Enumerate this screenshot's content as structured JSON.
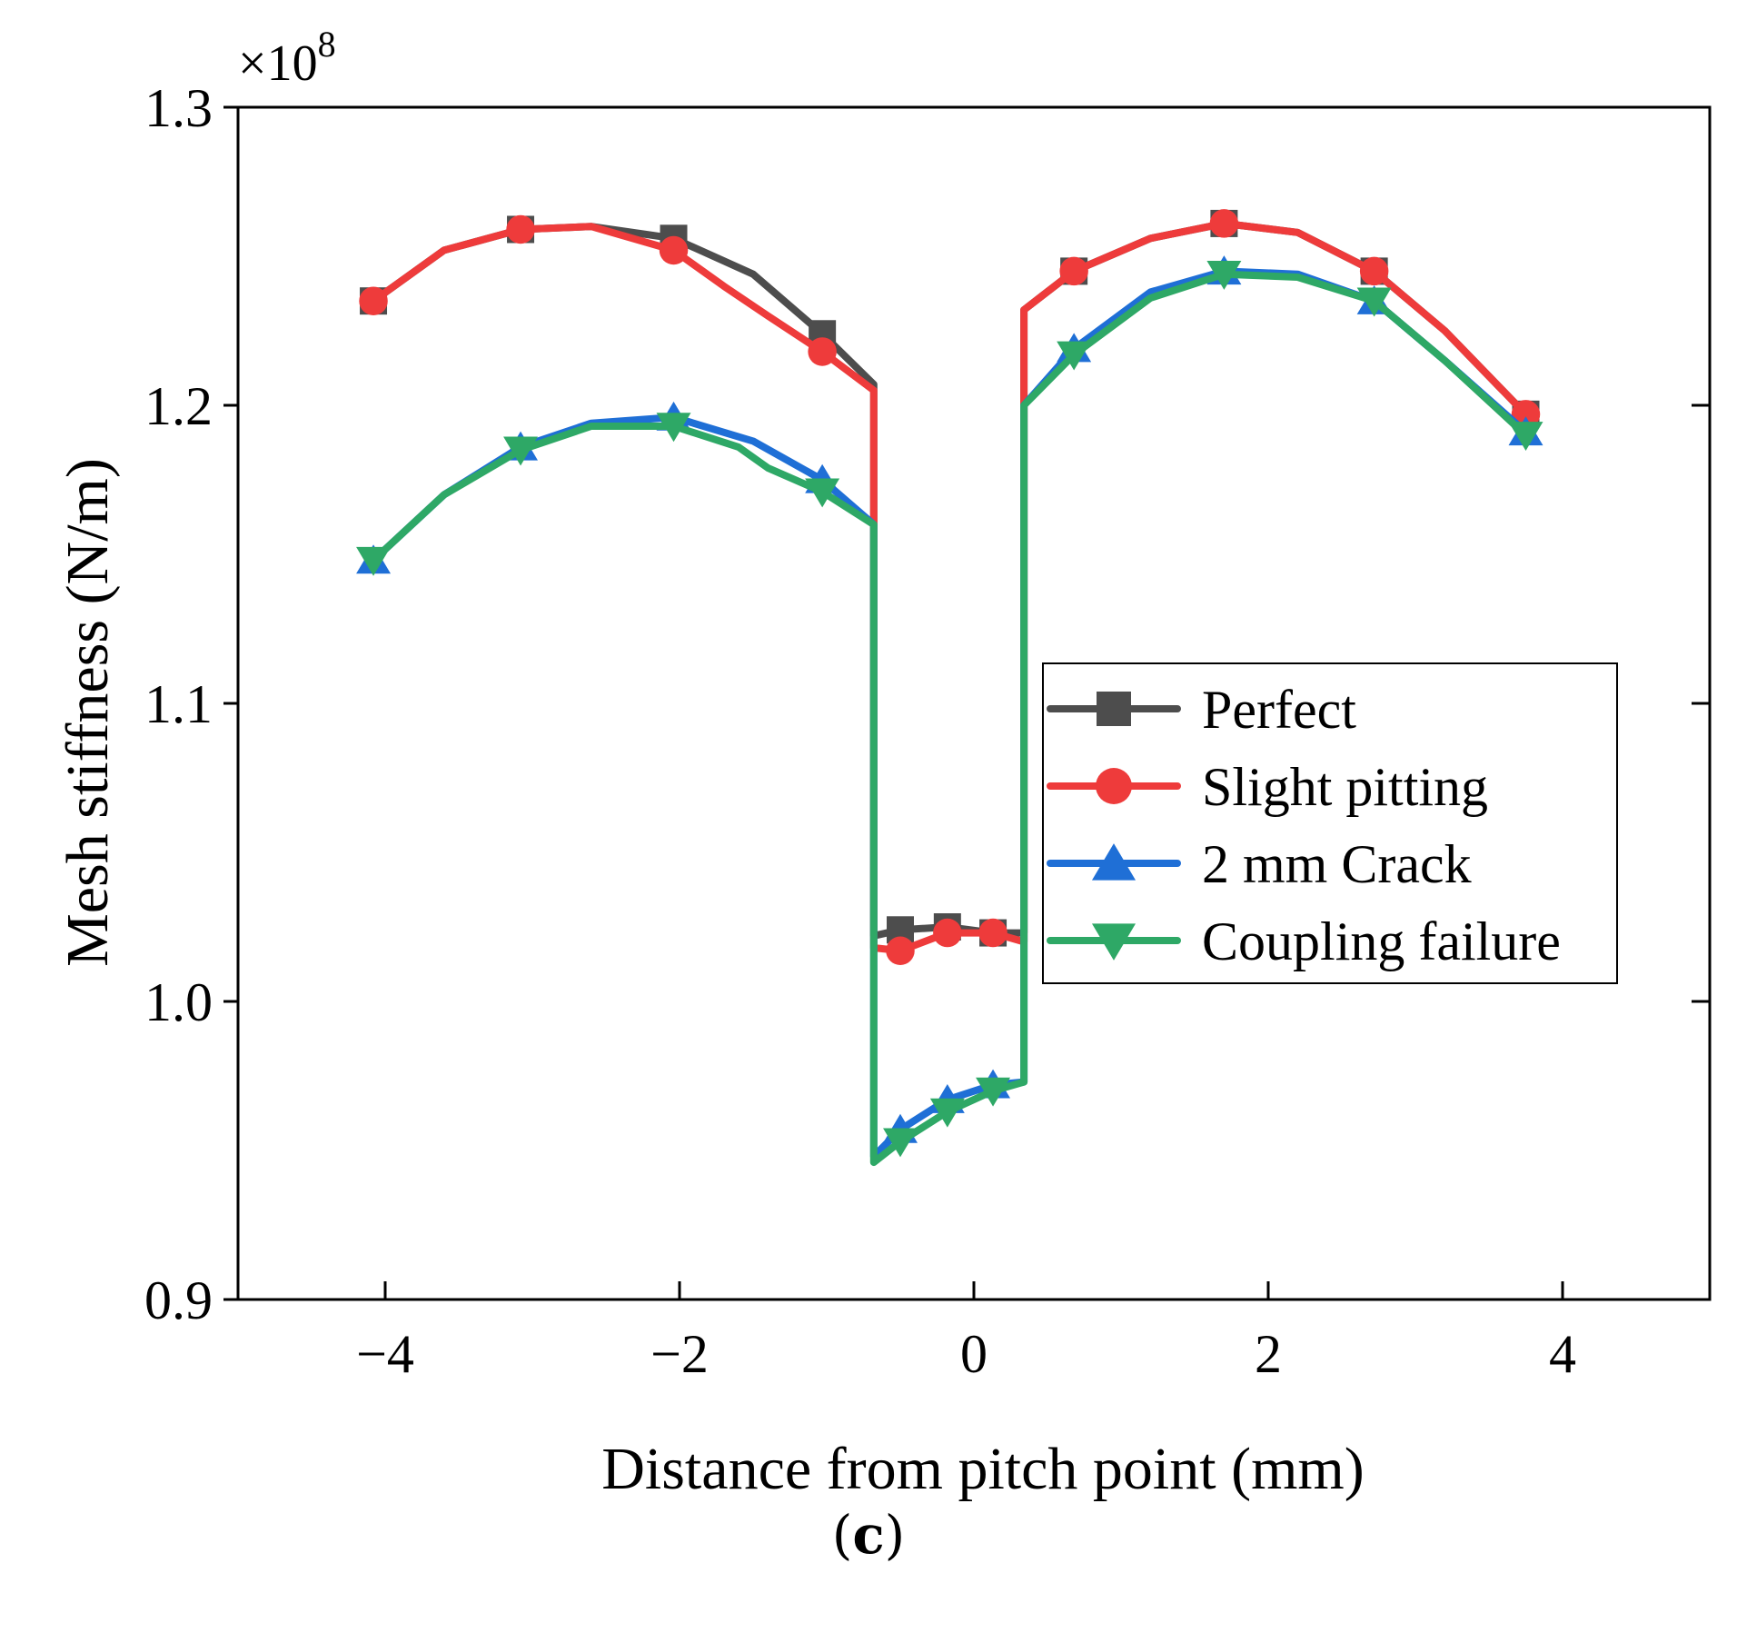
{
  "chart_data": {
    "type": "line",
    "title": "",
    "xlabel": "Distance from pitch point (mm)",
    "ylabel": "Mesh stiffness (N/m)",
    "y_multiplier": "×10",
    "y_multiplier_exp": "8",
    "xlim": [
      -5,
      5
    ],
    "ylim": [
      0.9,
      1.3
    ],
    "xticks": [
      -4,
      -2,
      0,
      2,
      4
    ],
    "xtick_labels": [
      "−4",
      "−2",
      "0",
      "2",
      "4"
    ],
    "yticks": [
      0.9,
      1.0,
      1.1,
      1.2,
      1.3
    ],
    "ytick_labels": [
      "0.9",
      "1.0",
      "1.1",
      "1.2",
      "1.3"
    ],
    "legend_position": "center-right",
    "series": [
      {
        "name": "Perfect",
        "color": "#4d4d4d",
        "marker": "square",
        "line": [
          [
            -4.08,
            1.235
          ],
          [
            -3.6,
            1.252
          ],
          [
            -3.08,
            1.259
          ],
          [
            -2.6,
            1.26
          ],
          [
            -2.04,
            1.256
          ],
          [
            -1.5,
            1.244
          ],
          [
            -1.03,
            1.224
          ],
          [
            -0.68,
            1.207
          ],
          [
            -0.68,
            1.022
          ],
          [
            -0.5,
            1.024
          ],
          [
            -0.18,
            1.025
          ],
          [
            0.13,
            1.023
          ],
          [
            0.34,
            1.023
          ],
          [
            0.34,
            1.232
          ],
          [
            0.68,
            1.245
          ],
          [
            1.2,
            1.256
          ],
          [
            1.7,
            1.261
          ],
          [
            2.2,
            1.258
          ],
          [
            2.72,
            1.245
          ],
          [
            3.2,
            1.225
          ],
          [
            3.75,
            1.197
          ]
        ],
        "markers_x": [
          -4.08,
          -3.08,
          -2.04,
          -1.03,
          -0.5,
          -0.18,
          0.13,
          0.68,
          1.7,
          2.72,
          3.75
        ],
        "markers_y": [
          1.235,
          1.259,
          1.256,
          1.224,
          1.024,
          1.025,
          1.023,
          1.245,
          1.261,
          1.245,
          1.197
        ]
      },
      {
        "name": "Slight pitting",
        "color": "#ee3b3b",
        "marker": "circle",
        "line": [
          [
            -4.08,
            1.235
          ],
          [
            -3.6,
            1.252
          ],
          [
            -3.08,
            1.259
          ],
          [
            -2.6,
            1.26
          ],
          [
            -2.04,
            1.252
          ],
          [
            -1.7,
            1.24
          ],
          [
            -1.4,
            1.23
          ],
          [
            -1.03,
            1.218
          ],
          [
            -0.68,
            1.205
          ],
          [
            -0.68,
            1.018
          ],
          [
            -0.5,
            1.017
          ],
          [
            -0.18,
            1.023
          ],
          [
            0.13,
            1.023
          ],
          [
            0.34,
            1.02
          ],
          [
            0.34,
            1.232
          ],
          [
            0.68,
            1.245
          ],
          [
            1.2,
            1.256
          ],
          [
            1.7,
            1.261
          ],
          [
            2.2,
            1.258
          ],
          [
            2.72,
            1.245
          ],
          [
            3.2,
            1.225
          ],
          [
            3.75,
            1.197
          ]
        ],
        "markers_x": [
          -4.08,
          -3.08,
          -2.04,
          -1.03,
          -0.5,
          -0.18,
          0.13,
          0.68,
          1.7,
          2.72,
          3.75
        ],
        "markers_y": [
          1.235,
          1.259,
          1.252,
          1.218,
          1.017,
          1.023,
          1.023,
          1.245,
          1.261,
          1.245,
          1.197
        ]
      },
      {
        "name": "2 mm Crack",
        "color": "#1f6fd6",
        "marker": "triangle-up",
        "line": [
          [
            -4.08,
            1.148
          ],
          [
            -3.6,
            1.17
          ],
          [
            -3.08,
            1.186
          ],
          [
            -2.6,
            1.194
          ],
          [
            -2.04,
            1.196
          ],
          [
            -1.5,
            1.188
          ],
          [
            -1.03,
            1.175
          ],
          [
            -0.68,
            1.16
          ],
          [
            -0.68,
            0.948
          ],
          [
            -0.5,
            0.957
          ],
          [
            -0.18,
            0.967
          ],
          [
            0.13,
            0.972
          ],
          [
            0.34,
            0.973
          ],
          [
            0.34,
            1.2
          ],
          [
            0.68,
            1.219
          ],
          [
            1.2,
            1.238
          ],
          [
            1.7,
            1.245
          ],
          [
            2.2,
            1.244
          ],
          [
            2.72,
            1.235
          ],
          [
            3.2,
            1.215
          ],
          [
            3.75,
            1.191
          ]
        ],
        "markers_x": [
          -4.08,
          -3.08,
          -2.04,
          -1.03,
          -0.5,
          -0.18,
          0.13,
          0.68,
          1.7,
          2.72,
          3.75
        ],
        "markers_y": [
          1.148,
          1.186,
          1.196,
          1.175,
          0.957,
          0.967,
          0.972,
          1.219,
          1.245,
          1.235,
          1.191
        ]
      },
      {
        "name": "Coupling failure",
        "color": "#2ea866",
        "marker": "triangle-down",
        "line": [
          [
            -4.08,
            1.148
          ],
          [
            -3.6,
            1.17
          ],
          [
            -3.08,
            1.185
          ],
          [
            -2.6,
            1.193
          ],
          [
            -2.04,
            1.193
          ],
          [
            -1.6,
            1.186
          ],
          [
            -1.4,
            1.179
          ],
          [
            -1.03,
            1.171
          ],
          [
            -0.68,
            1.16
          ],
          [
            -0.68,
            0.946
          ],
          [
            -0.5,
            0.953
          ],
          [
            -0.18,
            0.963
          ],
          [
            0.13,
            0.97
          ],
          [
            0.34,
            0.973
          ],
          [
            0.34,
            1.2
          ],
          [
            0.68,
            1.217
          ],
          [
            1.2,
            1.236
          ],
          [
            1.7,
            1.244
          ],
          [
            2.2,
            1.243
          ],
          [
            2.72,
            1.235
          ],
          [
            3.2,
            1.215
          ],
          [
            3.75,
            1.19
          ]
        ],
        "markers_x": [
          -4.08,
          -3.08,
          -2.04,
          -1.03,
          -0.5,
          -0.18,
          0.13,
          0.68,
          1.7,
          2.72,
          3.75
        ],
        "markers_y": [
          1.148,
          1.185,
          1.193,
          1.171,
          0.953,
          0.963,
          0.97,
          1.217,
          1.244,
          1.235,
          1.19
        ]
      }
    ]
  },
  "panel_label": "c"
}
